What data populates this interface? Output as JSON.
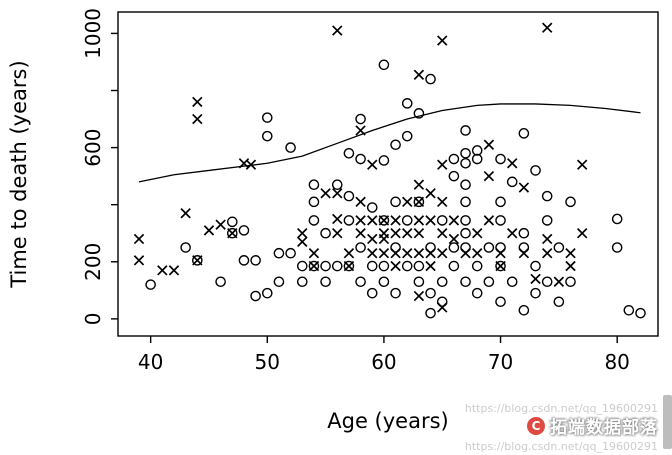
{
  "watermark": {
    "badge_text": "拓端数据部落",
    "url_text": "https://blog.csdn.net/qq_19600291",
    "logo_letter": "C",
    "logo_color": "#dd4a41",
    "text_color": "#ffffff"
  },
  "chart_data": {
    "type": "scatter",
    "title": "",
    "xlabel": "Age (years)",
    "ylabel": "Time to death (years)",
    "xlim": [
      37.2,
      83.5
    ],
    "ylim": [
      -60,
      1075
    ],
    "grid": false,
    "legend": "none",
    "frame_color": "#000000",
    "x_ticks": [
      {
        "value": 40,
        "label": "40"
      },
      {
        "value": 50,
        "label": "50"
      },
      {
        "value": 60,
        "label": "60"
      },
      {
        "value": 70,
        "label": "70"
      },
      {
        "value": 80,
        "label": "80"
      }
    ],
    "y_ticks": [
      {
        "value": 0,
        "label": "0"
      },
      {
        "value": 200,
        "label": "200"
      },
      {
        "value": 400,
        "label": ""
      },
      {
        "value": 600,
        "label": "600"
      },
      {
        "value": 800,
        "label": ""
      },
      {
        "value": 1000,
        "label": "1000"
      }
    ],
    "series": [
      {
        "name": "x-markers",
        "marker": "x",
        "points": [
          [
            39,
            280
          ],
          [
            39,
            205
          ],
          [
            41,
            170
          ],
          [
            42,
            170
          ],
          [
            43,
            370
          ],
          [
            44,
            760
          ],
          [
            44,
            700
          ],
          [
            44,
            205
          ],
          [
            45,
            310
          ],
          [
            46,
            330
          ],
          [
            47,
            300
          ],
          [
            48,
            545
          ],
          [
            48.6,
            540
          ],
          [
            53,
            300
          ],
          [
            53,
            270
          ],
          [
            54,
            230
          ],
          [
            54,
            185
          ],
          [
            55,
            440
          ],
          [
            56,
            1010
          ],
          [
            56,
            440
          ],
          [
            56,
            350
          ],
          [
            56,
            300
          ],
          [
            57,
            230
          ],
          [
            57,
            185
          ],
          [
            58,
            660
          ],
          [
            58,
            410
          ],
          [
            58,
            345
          ],
          [
            58,
            300
          ],
          [
            59,
            540
          ],
          [
            59,
            345
          ],
          [
            59,
            280
          ],
          [
            59,
            230
          ],
          [
            60,
            345
          ],
          [
            60,
            300
          ],
          [
            60,
            280
          ],
          [
            60,
            230
          ],
          [
            61,
            345
          ],
          [
            61,
            300
          ],
          [
            61,
            230
          ],
          [
            61,
            185
          ],
          [
            62,
            410
          ],
          [
            62,
            300
          ],
          [
            62,
            230
          ],
          [
            63,
            855
          ],
          [
            63,
            470
          ],
          [
            63,
            410
          ],
          [
            63,
            345
          ],
          [
            63,
            300
          ],
          [
            63,
            230
          ],
          [
            63,
            80
          ],
          [
            64,
            440
          ],
          [
            64,
            345
          ],
          [
            64,
            230
          ],
          [
            64,
            185
          ],
          [
            65,
            975
          ],
          [
            65,
            540
          ],
          [
            65,
            410
          ],
          [
            65,
            300
          ],
          [
            65,
            230
          ],
          [
            65,
            40
          ],
          [
            66,
            345
          ],
          [
            66,
            280
          ],
          [
            67,
            230
          ],
          [
            68,
            300
          ],
          [
            68,
            230
          ],
          [
            69,
            610
          ],
          [
            69,
            500
          ],
          [
            69,
            345
          ],
          [
            70,
            230
          ],
          [
            70,
            185
          ],
          [
            71,
            545
          ],
          [
            71,
            300
          ],
          [
            72,
            460
          ],
          [
            72,
            230
          ],
          [
            73,
            140
          ],
          [
            74,
            1020
          ],
          [
            74,
            280
          ],
          [
            74,
            230
          ],
          [
            75,
            130
          ],
          [
            76,
            230
          ],
          [
            76,
            185
          ],
          [
            77,
            540
          ],
          [
            77,
            300
          ]
        ]
      },
      {
        "name": "o-markers",
        "marker": "o",
        "points": [
          [
            40,
            120
          ],
          [
            43,
            250
          ],
          [
            44,
            205
          ],
          [
            46,
            130
          ],
          [
            47,
            340
          ],
          [
            47,
            300
          ],
          [
            48,
            310
          ],
          [
            48,
            205
          ],
          [
            49,
            205
          ],
          [
            49,
            80
          ],
          [
            50,
            705
          ],
          [
            50,
            640
          ],
          [
            50,
            90
          ],
          [
            51,
            230
          ],
          [
            51,
            130
          ],
          [
            52,
            600
          ],
          [
            52,
            230
          ],
          [
            53,
            185
          ],
          [
            53,
            130
          ],
          [
            54,
            470
          ],
          [
            54,
            410
          ],
          [
            54,
            345
          ],
          [
            54,
            185
          ],
          [
            55,
            300
          ],
          [
            55,
            185
          ],
          [
            55,
            130
          ],
          [
            56,
            470
          ],
          [
            56,
            185
          ],
          [
            57,
            580
          ],
          [
            57,
            430
          ],
          [
            57,
            345
          ],
          [
            57,
            185
          ],
          [
            58,
            700
          ],
          [
            58,
            560
          ],
          [
            58,
            250
          ],
          [
            58,
            130
          ],
          [
            59,
            390
          ],
          [
            59,
            185
          ],
          [
            59,
            90
          ],
          [
            60,
            890
          ],
          [
            60,
            555
          ],
          [
            60,
            345
          ],
          [
            60,
            185
          ],
          [
            60,
            130
          ],
          [
            61,
            610
          ],
          [
            61,
            410
          ],
          [
            61,
            250
          ],
          [
            61,
            90
          ],
          [
            62,
            755
          ],
          [
            62,
            640
          ],
          [
            62,
            345
          ],
          [
            62,
            185
          ],
          [
            63,
            720
          ],
          [
            63,
            410
          ],
          [
            63,
            185
          ],
          [
            63,
            130
          ],
          [
            64,
            840
          ],
          [
            64,
            250
          ],
          [
            64,
            90
          ],
          [
            64,
            20
          ],
          [
            65,
            345
          ],
          [
            65,
            130
          ],
          [
            65,
            60
          ],
          [
            66,
            560
          ],
          [
            66,
            500
          ],
          [
            66,
            250
          ],
          [
            66,
            185
          ],
          [
            67,
            660
          ],
          [
            67,
            580
          ],
          [
            67,
            545
          ],
          [
            67,
            470
          ],
          [
            67,
            410
          ],
          [
            67,
            345
          ],
          [
            67,
            300
          ],
          [
            67,
            250
          ],
          [
            67,
            130
          ],
          [
            68,
            590
          ],
          [
            68,
            560
          ],
          [
            68,
            185
          ],
          [
            68,
            90
          ],
          [
            69,
            250
          ],
          [
            69,
            130
          ],
          [
            70,
            560
          ],
          [
            70,
            410
          ],
          [
            70,
            345
          ],
          [
            70,
            250
          ],
          [
            70,
            185
          ],
          [
            70,
            60
          ],
          [
            71,
            480
          ],
          [
            71,
            130
          ],
          [
            72,
            650
          ],
          [
            72,
            300
          ],
          [
            72,
            250
          ],
          [
            72,
            30
          ],
          [
            73,
            520
          ],
          [
            73,
            185
          ],
          [
            73,
            90
          ],
          [
            74,
            430
          ],
          [
            74,
            345
          ],
          [
            74,
            130
          ],
          [
            75,
            250
          ],
          [
            75,
            60
          ],
          [
            76,
            410
          ],
          [
            76,
            130
          ],
          [
            80,
            350
          ],
          [
            80,
            250
          ],
          [
            81,
            30
          ],
          [
            82,
            20
          ]
        ]
      }
    ],
    "smooth_curve": [
      [
        39,
        480
      ],
      [
        42,
        505
      ],
      [
        45,
        520
      ],
      [
        48,
        535
      ],
      [
        50,
        545
      ],
      [
        53,
        570
      ],
      [
        56,
        615
      ],
      [
        59,
        660
      ],
      [
        62,
        700
      ],
      [
        65,
        730
      ],
      [
        68,
        748
      ],
      [
        70,
        753
      ],
      [
        73,
        753
      ],
      [
        76,
        748
      ],
      [
        79,
        737
      ],
      [
        82,
        722
      ]
    ]
  }
}
